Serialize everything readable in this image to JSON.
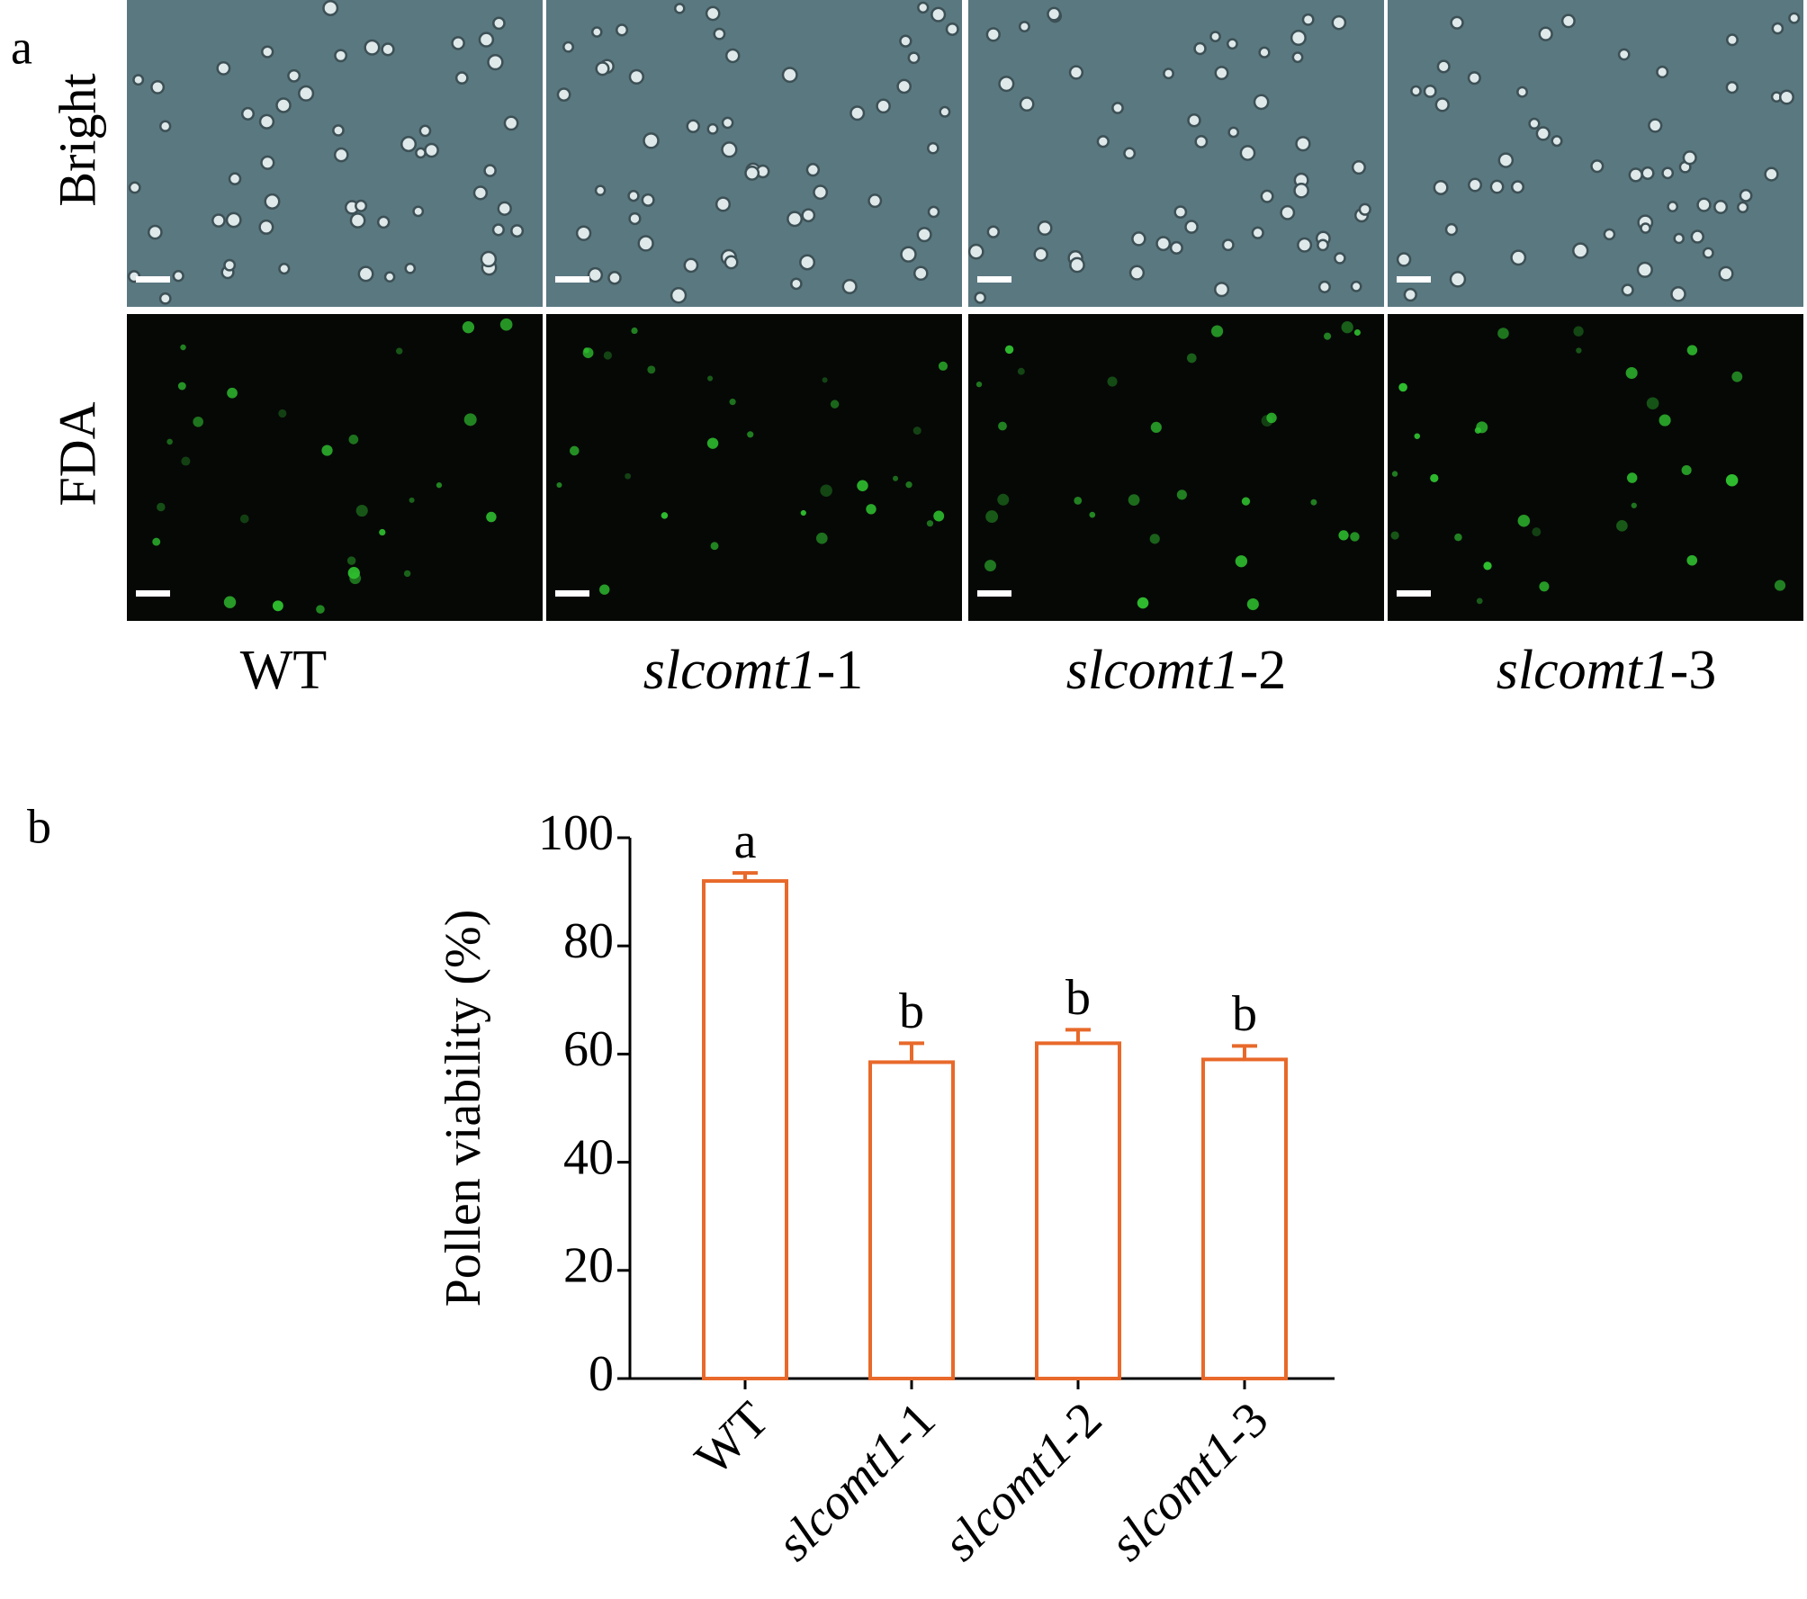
{
  "panel_a": {
    "label": "a",
    "rows": [
      "Bright",
      "FDA"
    ],
    "columns": [
      "WT",
      "slcomt1-1",
      "slcomt1-2",
      "slcomt1-3"
    ]
  },
  "panel_b": {
    "label": "b"
  },
  "chart_data": {
    "type": "bar",
    "ylabel": "Pollen viability (%)",
    "categories": [
      "WT",
      "slcomt1-1",
      "slcomt1-2",
      "slcomt1-3"
    ],
    "values": [
      92,
      58.5,
      62,
      59
    ],
    "errors": [
      1.5,
      3.5,
      2.5,
      2.5
    ],
    "annotations": [
      "a",
      "b",
      "b",
      "b"
    ],
    "color": "#e8692a",
    "ylim": [
      0,
      100
    ],
    "yticks": [
      0,
      20,
      40,
      60,
      80,
      100
    ],
    "grid": false
  }
}
